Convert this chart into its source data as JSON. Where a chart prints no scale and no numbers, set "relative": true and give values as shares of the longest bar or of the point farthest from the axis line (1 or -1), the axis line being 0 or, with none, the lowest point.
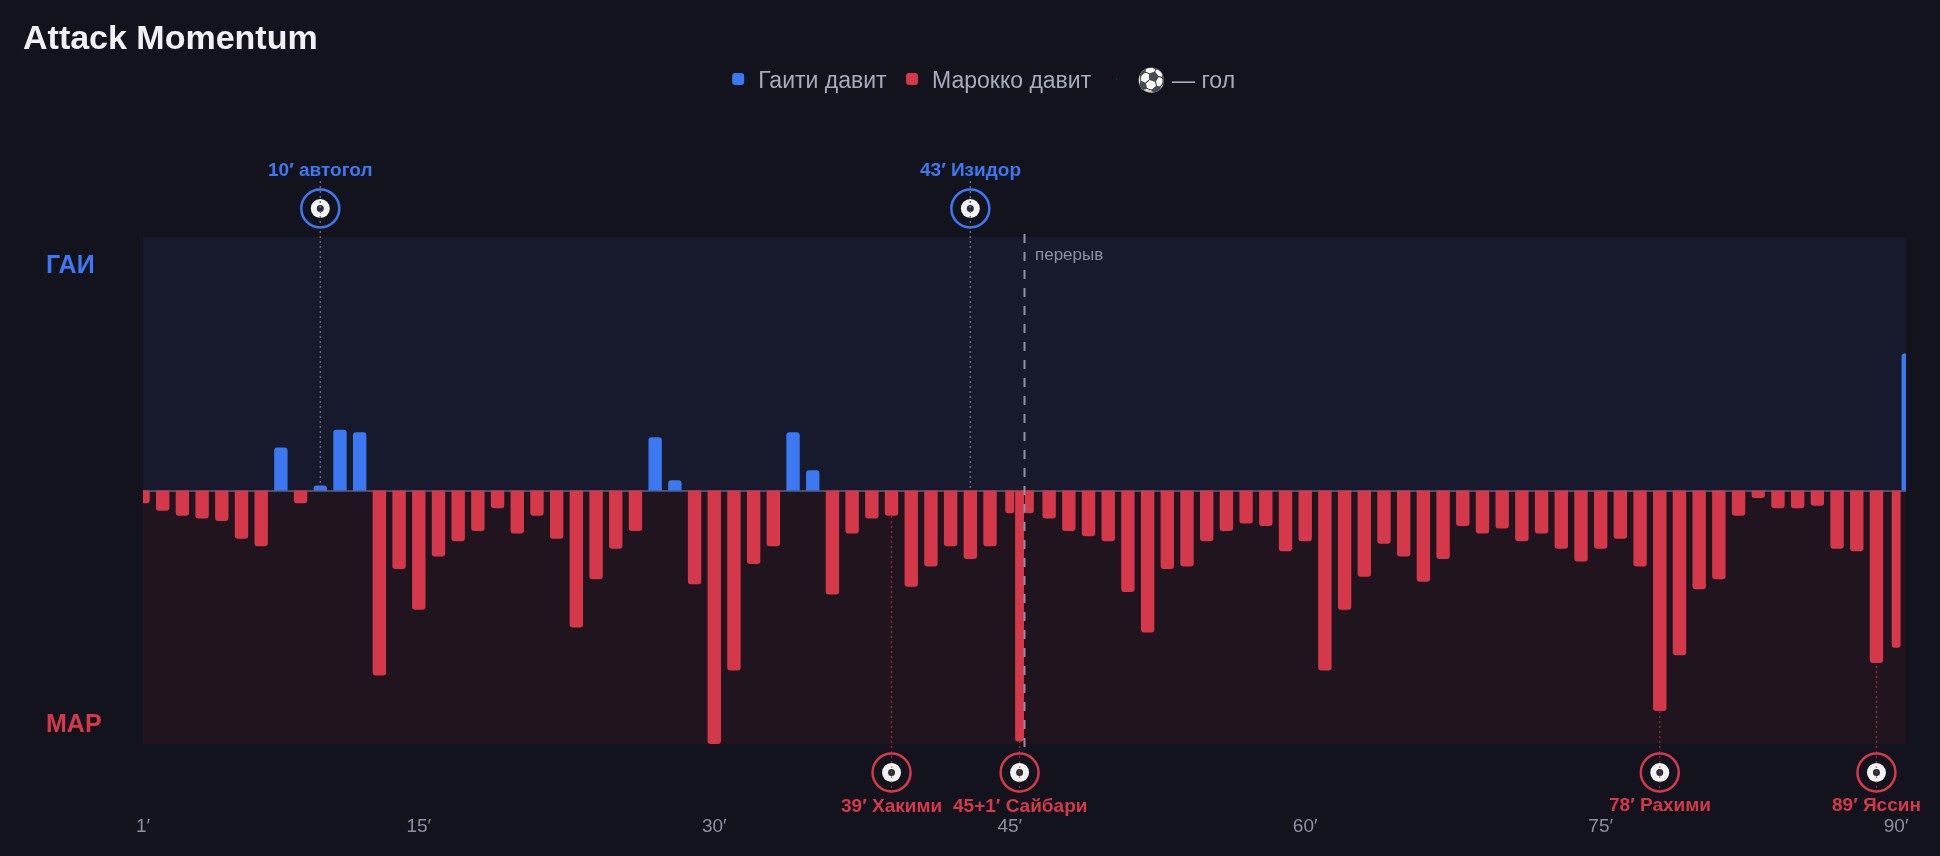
{
  "chart_data": {
    "type": "bar",
    "title": "Attack Momentum",
    "relative": true,
    "x": [
      1,
      2,
      3,
      4,
      5,
      6,
      7,
      8,
      9,
      10,
      11,
      12,
      13,
      14,
      15,
      16,
      17,
      18,
      19,
      20,
      21,
      22,
      23,
      24,
      25,
      26,
      27,
      28,
      29,
      30,
      31,
      32,
      33,
      34,
      35,
      36,
      37,
      38,
      39,
      40,
      41,
      42,
      43,
      44,
      45,
      45.5,
      46,
      47,
      48,
      49,
      50,
      51,
      52,
      53,
      54,
      55,
      56,
      57,
      58,
      59,
      60,
      61,
      62,
      63,
      64,
      65,
      66,
      67,
      68,
      69,
      70,
      71,
      72,
      73,
      74,
      75,
      76,
      77,
      78,
      79,
      80,
      81,
      82,
      83,
      84,
      85,
      86,
      87,
      88,
      89,
      90,
      90.5
    ],
    "series": [
      {
        "name": "Гаити давит",
        "color": "#3b78f2",
        "values": [
          null,
          null,
          null,
          null,
          null,
          null,
          null,
          0.17,
          null,
          0.02,
          0.24,
          0.23,
          null,
          null,
          null,
          null,
          null,
          null,
          null,
          null,
          null,
          null,
          null,
          null,
          null,
          null,
          0.21,
          0.04,
          null,
          null,
          null,
          null,
          null,
          0.23,
          0.08,
          null,
          null,
          null,
          null,
          null,
          null,
          null,
          null,
          null,
          null,
          null,
          null,
          null,
          null,
          null,
          null,
          null,
          null,
          null,
          null,
          null,
          null,
          null,
          null,
          null,
          null,
          null,
          null,
          null,
          null,
          null,
          null,
          null,
          null,
          null,
          null,
          null,
          null,
          null,
          null,
          null,
          null,
          null,
          null,
          null,
          null,
          null,
          null,
          null,
          null,
          null,
          null,
          null,
          null,
          null,
          null,
          0.54
        ]
      },
      {
        "name": "Марокко давит",
        "color": "#d6384b",
        "values": [
          -0.05,
          -0.08,
          -0.1,
          -0.11,
          -0.12,
          -0.19,
          -0.22,
          null,
          -0.05,
          null,
          null,
          null,
          -0.73,
          -0.31,
          -0.47,
          -0.26,
          -0.2,
          -0.16,
          -0.07,
          -0.17,
          -0.1,
          -0.19,
          -0.54,
          -0.35,
          -0.23,
          -0.16,
          null,
          null,
          -0.37,
          -1.0,
          -0.71,
          -0.29,
          -0.22,
          null,
          null,
          -0.41,
          -0.17,
          -0.11,
          -0.1,
          -0.38,
          -0.3,
          -0.22,
          -0.27,
          -0.22,
          -0.09,
          -0.99,
          -0.09,
          -0.11,
          -0.16,
          -0.18,
          -0.2,
          -0.4,
          -0.56,
          -0.31,
          -0.3,
          -0.2,
          -0.16,
          -0.13,
          -0.14,
          -0.24,
          -0.2,
          -0.71,
          -0.47,
          -0.34,
          -0.21,
          -0.26,
          -0.36,
          -0.27,
          -0.14,
          -0.17,
          -0.15,
          -0.2,
          -0.17,
          -0.23,
          -0.28,
          -0.23,
          -0.19,
          -0.3,
          -0.87,
          -0.65,
          -0.39,
          -0.35,
          -0.1,
          -0.03,
          -0.07,
          -0.07,
          -0.06,
          -0.23,
          -0.24,
          -0.68,
          -0.62,
          null
        ]
      }
    ],
    "xlim": [
      1,
      90.5
    ],
    "xticks": [
      {
        "value": 1,
        "label": "1′"
      },
      {
        "value": 15,
        "label": "15′"
      },
      {
        "value": 30,
        "label": "30′"
      },
      {
        "value": 45,
        "label": "45′"
      },
      {
        "value": 60,
        "label": "60′"
      },
      {
        "value": 75,
        "label": "75′"
      },
      {
        "value": 90,
        "label": "90′"
      }
    ],
    "legend": "top",
    "bands": [
      {
        "axis": "y",
        "from": 0,
        "to": 1,
        "color": "#171a2c"
      },
      {
        "axis": "y",
        "from": -1,
        "to": 0,
        "color": "#20151f"
      }
    ],
    "ref_lines": [
      {
        "axis": "x",
        "value": 45.75,
        "label": "перерыв",
        "color": "#8e91a3",
        "line_style": "dashed"
      }
    ],
    "annotations": [
      "ГАИ",
      "МАР",
      "⚽ — гол",
      {
        "text": "10′ автогол",
        "x": 10,
        "y": 0.02
      },
      {
        "text": "43′ Изидор",
        "x": 43,
        "y": 0
      },
      {
        "text": "39′ Хакими",
        "x": 39,
        "y": -0.1
      },
      {
        "text": "45+1′ Сайбари",
        "x": 45.5,
        "y": -0.99
      },
      {
        "text": "78′ Рахими",
        "x": 78,
        "y": -0.87
      },
      {
        "text": "89′ Яссин",
        "x": 89,
        "y": -0.68
      }
    ]
  }
}
